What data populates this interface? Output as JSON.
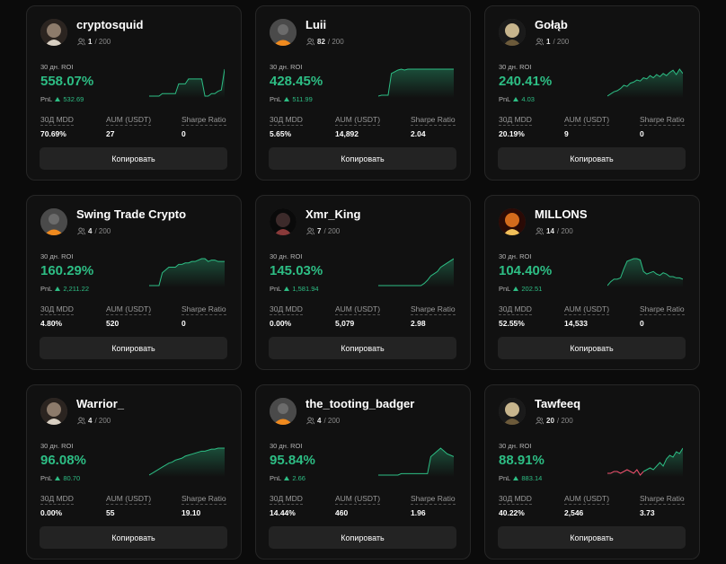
{
  "labels": {
    "roi": "30 дн. ROI",
    "pnl": "PnL",
    "mdd": "30Д MDD",
    "aum": "AUM (USDT)",
    "sharpe": "Sharpe Ratio",
    "copy": "Копировать",
    "capacity": "/ 200"
  },
  "colors": {
    "positive": "#2dbd84",
    "negative": "#f0506e"
  },
  "cards": [
    {
      "name": "cryptosquid",
      "followers": "1",
      "roi": "558.07%",
      "pnl": "532.69",
      "mdd": "70.69%",
      "aum": "27",
      "sharpe": "0",
      "avatar": "photo-avatar",
      "series": [
        20,
        20,
        20,
        20,
        22,
        22,
        22,
        22,
        22,
        30,
        30,
        30,
        34,
        34,
        34,
        34,
        34,
        20,
        20,
        22,
        22,
        24,
        25,
        42
      ]
    },
    {
      "name": "Luii",
      "followers": "82",
      "roi": "428.45%",
      "pnl": "511.99",
      "mdd": "5.65%",
      "aum": "14,892",
      "sharpe": "2.04",
      "avatar": "default-avatar",
      "series": [
        2,
        3,
        3,
        3,
        28,
        30,
        32,
        33,
        32,
        33,
        33,
        33,
        33,
        33,
        33,
        33,
        33,
        33,
        33,
        33,
        33,
        33,
        33,
        33
      ]
    },
    {
      "name": "Gołąb",
      "followers": "1",
      "roi": "240.41%",
      "pnl": "4.03",
      "mdd": "20.19%",
      "aum": "9",
      "sharpe": "0",
      "avatar": "photo-avatar",
      "series": [
        5,
        7,
        9,
        10,
        12,
        15,
        14,
        17,
        18,
        20,
        19,
        22,
        21,
        24,
        22,
        25,
        23,
        26,
        24,
        27,
        29,
        25,
        30,
        26
      ]
    },
    {
      "name": "Swing Trade Crypto",
      "followers": "4",
      "roi": "160.29%",
      "pnl": "2,211.22",
      "mdd": "4.80%",
      "aum": "520",
      "sharpe": "0",
      "avatar": "default-avatar",
      "series": [
        5,
        5,
        5,
        5,
        14,
        16,
        18,
        18,
        18,
        20,
        20,
        21,
        21,
        22,
        22,
        23,
        24,
        24,
        22,
        23,
        23,
        22,
        22,
        22
      ]
    },
    {
      "name": "Xmr_King",
      "followers": "7",
      "roi": "145.03%",
      "pnl": "1,581.94",
      "mdd": "0.00%",
      "aum": "5,079",
      "sharpe": "2.98",
      "avatar": "photo-avatar",
      "series": [
        3,
        3,
        3,
        3,
        3,
        3,
        3,
        3,
        3,
        3,
        3,
        3,
        3,
        3,
        5,
        8,
        12,
        14,
        16,
        20,
        22,
        24,
        26,
        28
      ]
    },
    {
      "name": "MILLONS",
      "followers": "14",
      "roi": "104.40%",
      "pnl": "202.51",
      "mdd": "52.55%",
      "aum": "14,533",
      "sharpe": "0",
      "avatar": "photo-avatar",
      "series": [
        5,
        8,
        10,
        10,
        11,
        18,
        24,
        25,
        26,
        26,
        25,
        16,
        14,
        15,
        16,
        14,
        13,
        15,
        14,
        12,
        12,
        11,
        11,
        10
      ]
    },
    {
      "name": "Warrior_",
      "followers": "4",
      "roi": "96.08%",
      "pnl": "80.70",
      "mdd": "0.00%",
      "aum": "55",
      "sharpe": "19.10",
      "avatar": "photo-avatar",
      "series": [
        3,
        5,
        7,
        9,
        11,
        13,
        15,
        16,
        18,
        19,
        20,
        22,
        23,
        24,
        25,
        26,
        27,
        27,
        28,
        29,
        29,
        30,
        30,
        30
      ]
    },
    {
      "name": "the_tooting_badger",
      "followers": "4",
      "roi": "95.84%",
      "pnl": "2.66",
      "mdd": "14.44%",
      "aum": "460",
      "sharpe": "1.96",
      "avatar": "default-avatar",
      "series": [
        5,
        5,
        5,
        5,
        5,
        5,
        5,
        6,
        6,
        6,
        6,
        6,
        6,
        6,
        6,
        6,
        18,
        20,
        22,
        24,
        22,
        20,
        19,
        18
      ]
    },
    {
      "name": "Tawfeeq",
      "followers": "20",
      "roi": "88.91%",
      "pnl": "883.14",
      "mdd": "40.22%",
      "aum": "2,546",
      "sharpe": "3.73",
      "avatar": "photo-avatar",
      "series": [
        8,
        8,
        9,
        9,
        8,
        9,
        10,
        9,
        8,
        10,
        7,
        9,
        10,
        11,
        10,
        12,
        14,
        12,
        16,
        18,
        17,
        20,
        19,
        22
      ],
      "split": 11
    }
  ]
}
